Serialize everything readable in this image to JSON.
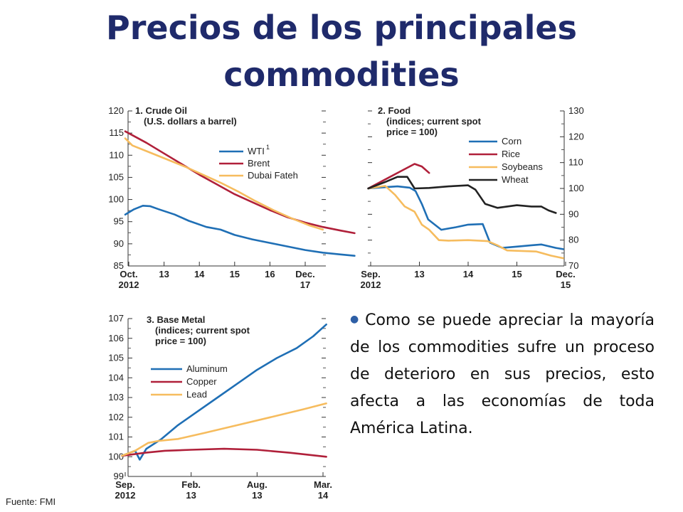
{
  "slide": {
    "title_line1": "Precios de los principales",
    "title_line2": "commodities",
    "bullet": "Como se puede apreciar la mayoría de los commodities sufre un proceso de deterioro en sus precios, esto afecta a las economías de toda América Latina.",
    "source": "Fuente: FMI"
  },
  "colors": {
    "title": "#1f2a6b",
    "blue": "#1f6fb5",
    "red": "#b0203a",
    "yellow": "#f6bc5e",
    "black": "#222222"
  },
  "chart_data": [
    {
      "type": "line",
      "title": "1. Crude Oil",
      "subtitle": "(U.S. dollars a barrel)",
      "ylim": [
        85,
        120
      ],
      "y_ticks": [
        85,
        90,
        95,
        100,
        105,
        110,
        115,
        120
      ],
      "x_ticks": [
        {
          "t": 0,
          "l1": "Oct.",
          "l2": "2012"
        },
        {
          "t": 1,
          "l1": "13",
          "l2": ""
        },
        {
          "t": 2,
          "l1": "14",
          "l2": ""
        },
        {
          "t": 3,
          "l1": "15",
          "l2": ""
        },
        {
          "t": 4,
          "l1": "16",
          "l2": ""
        },
        {
          "t": 5,
          "l1": "Dec.",
          "l2": "17"
        }
      ],
      "legend_position": "center-right",
      "series": [
        {
          "name": "WTI",
          "sup": "1",
          "color": "#1f6fb5",
          "points": [
            [
              -0.1,
              96.6
            ],
            [
              0.15,
              97.8
            ],
            [
              0.4,
              98.6
            ],
            [
              0.6,
              98.5
            ],
            [
              0.85,
              97.8
            ],
            [
              1.3,
              96.6
            ],
            [
              1.7,
              95.2
            ],
            [
              2.2,
              93.8
            ],
            [
              2.6,
              93.2
            ],
            [
              3.0,
              92.0
            ],
            [
              3.5,
              91.0
            ],
            [
              4.0,
              90.2
            ],
            [
              4.5,
              89.4
            ],
            [
              5.0,
              88.6
            ],
            [
              5.5,
              88.0
            ],
            [
              6.0,
              87.6
            ],
            [
              6.4,
              87.3
            ]
          ]
        },
        {
          "name": "Brent",
          "color": "#b0203a",
          "points": [
            [
              -0.1,
              115.4
            ],
            [
              0.5,
              112.8
            ],
            [
              1.0,
              110.4
            ],
            [
              1.5,
              108.0
            ],
            [
              2.0,
              105.6
            ],
            [
              2.5,
              103.4
            ],
            [
              3.0,
              101.2
            ],
            [
              3.5,
              99.4
            ],
            [
              4.0,
              97.6
            ],
            [
              4.5,
              96.0
            ],
            [
              5.0,
              94.8
            ],
            [
              5.5,
              93.8
            ],
            [
              6.0,
              93.0
            ],
            [
              6.4,
              92.4
            ]
          ]
        },
        {
          "name": "Dubai Fateh",
          "color": "#f6bc5e",
          "points": [
            [
              -0.1,
              113.8
            ],
            [
              0.1,
              112.2
            ],
            [
              0.6,
              110.6
            ],
            [
              1.1,
              109.0
            ],
            [
              1.6,
              107.4
            ],
            [
              2.1,
              105.6
            ],
            [
              2.6,
              103.8
            ],
            [
              3.1,
              101.8
            ],
            [
              3.6,
              99.6
            ],
            [
              4.1,
              97.6
            ],
            [
              4.6,
              95.8
            ],
            [
              5.1,
              94.2
            ],
            [
              5.5,
              93.2
            ]
          ]
        }
      ]
    },
    {
      "type": "line",
      "title": "2. Food",
      "subtitle": "(indices; current spot price = 100)",
      "ylim": [
        70,
        130
      ],
      "y_ticks": [
        70,
        80,
        90,
        100,
        110,
        120,
        130
      ],
      "x_ticks": [
        {
          "t": 0,
          "l1": "Sep.",
          "l2": "2012"
        },
        {
          "t": 1,
          "l1": "13",
          "l2": ""
        },
        {
          "t": 2,
          "l1": "14",
          "l2": ""
        },
        {
          "t": 3,
          "l1": "15",
          "l2": ""
        },
        {
          "t": 4,
          "l1": "Dec.",
          "l2": "15"
        }
      ],
      "legend_position": "top-right",
      "series": [
        {
          "name": "Corn",
          "color": "#1f6fb5",
          "points": [
            [
              -0.05,
              100
            ],
            [
              0.3,
              100.5
            ],
            [
              0.55,
              100.8
            ],
            [
              0.8,
              100.3
            ],
            [
              0.92,
              99
            ],
            [
              1.05,
              94
            ],
            [
              1.18,
              88
            ],
            [
              1.45,
              84
            ],
            [
              1.75,
              85
            ],
            [
              2.0,
              86
            ],
            [
              2.3,
              86.2
            ],
            [
              2.45,
              79
            ],
            [
              2.7,
              77
            ],
            [
              3.0,
              77.5
            ],
            [
              3.3,
              78
            ],
            [
              3.5,
              78.3
            ],
            [
              3.8,
              77
            ],
            [
              3.95,
              76.5
            ]
          ]
        },
        {
          "name": "Rice",
          "color": "#b0203a",
          "points": [
            [
              -0.05,
              100
            ],
            [
              0.3,
              103.5
            ],
            [
              0.6,
              106.5
            ],
            [
              0.9,
              109.5
            ],
            [
              1.05,
              108.5
            ],
            [
              1.2,
              106
            ]
          ]
        },
        {
          "name": "Soybeans",
          "color": "#f6bc5e",
          "points": [
            [
              -0.05,
              100
            ],
            [
              0.3,
              101
            ],
            [
              0.5,
              97.5
            ],
            [
              0.7,
              93
            ],
            [
              0.9,
              91
            ],
            [
              1.05,
              86
            ],
            [
              1.2,
              84
            ],
            [
              1.4,
              80
            ],
            [
              1.6,
              79.8
            ],
            [
              2.0,
              80
            ],
            [
              2.4,
              79.6
            ],
            [
              2.6,
              78
            ],
            [
              2.8,
              76
            ],
            [
              3.1,
              75.8
            ],
            [
              3.4,
              75.6
            ],
            [
              3.7,
              74
            ],
            [
              3.95,
              73
            ]
          ]
        },
        {
          "name": "Wheat",
          "color": "#222222",
          "points": [
            [
              -0.05,
              100
            ],
            [
              0.3,
              102.5
            ],
            [
              0.55,
              104.5
            ],
            [
              0.75,
              104.5
            ],
            [
              0.9,
              100
            ],
            [
              1.2,
              100.2
            ],
            [
              1.6,
              100.8
            ],
            [
              2.0,
              101.2
            ],
            [
              2.15,
              99.5
            ],
            [
              2.35,
              94
            ],
            [
              2.6,
              92.5
            ],
            [
              3.0,
              93.5
            ],
            [
              3.3,
              93
            ],
            [
              3.5,
              93
            ],
            [
              3.65,
              91.5
            ],
            [
              3.8,
              90.5
            ]
          ]
        }
      ]
    },
    {
      "type": "line",
      "title": "3. Base Metal",
      "subtitle": "(indices; current spot price = 100)",
      "ylim": [
        99,
        107
      ],
      "y_ticks": [
        99,
        100,
        101,
        102,
        103,
        104,
        105,
        106,
        107
      ],
      "x_ticks": [
        {
          "t": 0,
          "l1": "Sep.",
          "l2": "2012"
        },
        {
          "t": 1,
          "l1": "Feb.",
          "l2": "13"
        },
        {
          "t": 2,
          "l1": "Aug.",
          "l2": "13"
        },
        {
          "t": 3,
          "l1": "Mar.",
          "l2": "14"
        }
      ],
      "legend_position": "center-left",
      "series": [
        {
          "name": "Aluminum",
          "color": "#1f6fb5",
          "points": [
            [
              -0.05,
              100.05
            ],
            [
              0.15,
              100.3
            ],
            [
              0.22,
              99.85
            ],
            [
              0.32,
              100.4
            ],
            [
              0.55,
              100.9
            ],
            [
              0.8,
              101.6
            ],
            [
              1.1,
              102.3
            ],
            [
              1.4,
              103.0
            ],
            [
              1.7,
              103.7
            ],
            [
              2.0,
              104.4
            ],
            [
              2.3,
              105.0
            ],
            [
              2.6,
              105.5
            ],
            [
              2.85,
              106.1
            ],
            [
              3.05,
              106.7
            ]
          ]
        },
        {
          "name": "Copper",
          "color": "#b0203a",
          "points": [
            [
              -0.05,
              100.05
            ],
            [
              0.3,
              100.2
            ],
            [
              0.6,
              100.3
            ],
            [
              1.0,
              100.35
            ],
            [
              1.5,
              100.4
            ],
            [
              2.0,
              100.35
            ],
            [
              2.5,
              100.2
            ],
            [
              3.05,
              100.0
            ]
          ]
        },
        {
          "name": "Lead",
          "color": "#f6bc5e",
          "points": [
            [
              -0.05,
              100.05
            ],
            [
              0.15,
              100.3
            ],
            [
              0.35,
              100.7
            ],
            [
              0.5,
              100.8
            ],
            [
              0.8,
              100.9
            ],
            [
              1.2,
              101.2
            ],
            [
              1.7,
              101.6
            ],
            [
              2.2,
              102.0
            ],
            [
              2.7,
              102.4
            ],
            [
              3.05,
              102.7
            ]
          ]
        }
      ]
    }
  ]
}
